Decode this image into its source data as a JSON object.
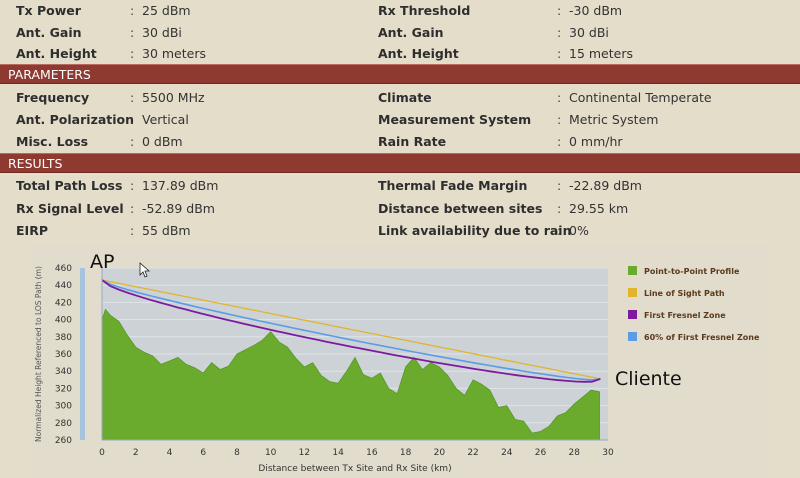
{
  "top_params": [
    {
      "left_label": "Tx Power",
      "left_value": "25 dBm",
      "right_label": "Rx Threshold",
      "right_value": "-30 dBm"
    },
    {
      "left_label": "Ant. Gain",
      "left_value": "30 dBi",
      "right_label": "Ant. Gain",
      "right_value": "30 dBi"
    },
    {
      "left_label": "Ant. Height",
      "left_value": "30 meters",
      "right_label": "Ant. Height",
      "right_value": "15 meters"
    }
  ],
  "parameters": {
    "title": "PARAMETERS",
    "rows": [
      {
        "left_label": "Frequency",
        "left_value": "5500 MHz",
        "right_label": "Climate",
        "right_value": "Continental Temperate"
      },
      {
        "left_label": "Ant. Polarization",
        "left_value": "Vertical",
        "right_label": "Measurement System",
        "right_value": "Metric System"
      },
      {
        "left_label": "Misc. Loss",
        "left_value": "0 dBm",
        "right_label": "Rain Rate",
        "right_value": "0 mm/hr"
      }
    ]
  },
  "results": {
    "title": "RESULTS",
    "rows": [
      {
        "left_label": "Total Path Loss",
        "left_value": "137.89 dBm",
        "right_label": "Thermal Fade Margin",
        "right_value": "-22.89 dBm"
      },
      {
        "left_label": "Rx Signal Level",
        "left_value": "-52.89 dBm",
        "right_label": "Distance between sites",
        "right_value": "29.55 km"
      },
      {
        "left_label": "EIRP",
        "left_value": "55 dBm",
        "right_label": "Link availability due to rain",
        "right_value": "0%"
      }
    ]
  },
  "colon": ":",
  "chart_data": {
    "type": "area",
    "xlabel": "Distance between Tx Site and Rx Site (km)",
    "ylabel": "Normalized Height Referenced to LOS Path (m)",
    "xlim": [
      0,
      30
    ],
    "ylim": [
      260,
      460
    ],
    "xticks": [
      0,
      2,
      4,
      6,
      8,
      10,
      12,
      14,
      16,
      18,
      20,
      22,
      24,
      26,
      28,
      30
    ],
    "yticks": [
      260,
      280,
      300,
      320,
      340,
      360,
      380,
      400,
      420,
      440,
      460
    ],
    "endpoint_labels": {
      "start": "AP",
      "end": "Cliente"
    },
    "legend_position": "right",
    "series": [
      {
        "name": "Point-to-Point Profile",
        "color": "#6aaa2c",
        "x": [
          0,
          0.2,
          0.5,
          1,
          1.5,
          2,
          2.5,
          3,
          3.5,
          4,
          4.5,
          5,
          5.5,
          6,
          6.5,
          7,
          7.5,
          8,
          8.5,
          9,
          9.5,
          10,
          10.5,
          11,
          11.5,
          12,
          12.5,
          13,
          13.5,
          14,
          14.5,
          15,
          15.5,
          16,
          16.5,
          17,
          17.5,
          18,
          18.5,
          19,
          19.5,
          20,
          20.5,
          21,
          21.5,
          22,
          22.5,
          23,
          23.5,
          24,
          24.5,
          25,
          25.5,
          26,
          26.5,
          27,
          27.5,
          28,
          28.5,
          29,
          29.5
        ],
        "y": [
          400,
          412,
          405,
          398,
          382,
          368,
          362,
          358,
          348,
          352,
          356,
          348,
          344,
          338,
          350,
          342,
          346,
          360,
          365,
          370,
          376,
          386,
          374,
          368,
          355,
          345,
          350,
          335,
          328,
          326,
          340,
          356,
          336,
          332,
          338,
          320,
          314,
          345,
          356,
          342,
          350,
          345,
          335,
          320,
          312,
          330,
          325,
          318,
          298,
          300,
          284,
          282,
          268,
          270,
          276,
          288,
          292,
          302,
          310,
          318,
          316
        ]
      },
      {
        "name": "Line of Sight Path",
        "color": "#e0b52c",
        "x": [
          0,
          29.55
        ],
        "y": [
          446,
          331
        ]
      },
      {
        "name": "First Fresnel Zone",
        "color": "#7d1aa0"
      },
      {
        "name": "60% of First Fresnel Zone",
        "color": "#5b9ce6"
      }
    ]
  }
}
